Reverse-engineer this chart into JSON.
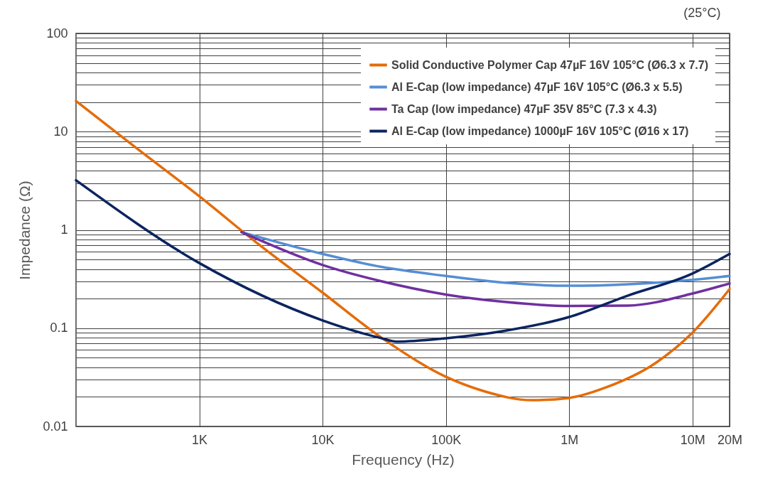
{
  "chart_data": {
    "type": "line",
    "xlabel": "Frequency (Hz)",
    "ylabel": "Impedance (Ω)",
    "annotations": [
      "(25°C)"
    ],
    "log": "xy",
    "grid": true,
    "legend": "top right",
    "xlim": [
      100,
      20000000
    ],
    "ylim": [
      0.01,
      100
    ],
    "xticks": [
      {
        "value": 1000,
        "label": "1K"
      },
      {
        "value": 10000,
        "label": "10K"
      },
      {
        "value": 100000,
        "label": "100K"
      },
      {
        "value": 1000000,
        "label": "1M"
      },
      {
        "value": 10000000,
        "label": "10M"
      },
      {
        "value": 20000000,
        "label": "20M"
      }
    ],
    "yticks": [
      0.01,
      {
        "value": 0.02,
        "label": null
      },
      {
        "value": 0.03,
        "label": null
      },
      {
        "value": 0.04,
        "label": null
      },
      {
        "value": 0.05,
        "label": null
      },
      {
        "value": 0.06,
        "label": null
      },
      {
        "value": 0.07,
        "label": null
      },
      {
        "value": 0.08,
        "label": null
      },
      {
        "value": 0.09,
        "label": null
      },
      0.1,
      {
        "value": 0.2,
        "label": null
      },
      {
        "value": 0.3,
        "label": null
      },
      {
        "value": 0.4,
        "label": null
      },
      {
        "value": 0.5,
        "label": null
      },
      {
        "value": 0.6,
        "label": null
      },
      {
        "value": 0.7,
        "label": null
      },
      {
        "value": 0.8,
        "label": null
      },
      {
        "value": 0.9,
        "label": null
      },
      1,
      {
        "value": 2,
        "label": null
      },
      {
        "value": 3,
        "label": null
      },
      {
        "value": 4,
        "label": null
      },
      {
        "value": 5,
        "label": null
      },
      {
        "value": 6,
        "label": null
      },
      {
        "value": 7,
        "label": null
      },
      {
        "value": 8,
        "label": null
      },
      {
        "value": 9,
        "label": null
      },
      10,
      {
        "value": 20,
        "label": null
      },
      {
        "value": 30,
        "label": null
      },
      {
        "value": 40,
        "label": null
      },
      {
        "value": 50,
        "label": null
      },
      {
        "value": 60,
        "label": null
      },
      {
        "value": 70,
        "label": null
      },
      {
        "value": 80,
        "label": null
      },
      {
        "value": 90,
        "label": null
      },
      100
    ],
    "series": [
      {
        "name": "Solid Conductive Polymer Cap 47µF 16V 105°C (Ø6.3 x 7.7)",
        "color": "#e46c0a",
        "x": [
          100,
          300,
          1000,
          3000,
          10000,
          30000,
          100000,
          200000,
          500000,
          1000000,
          2000000,
          5000000,
          10000000,
          20000000
        ],
        "values": [
          20.5,
          7,
          2.2,
          0.72,
          0.23,
          0.08,
          0.032,
          0.023,
          0.0185,
          0.0195,
          0.025,
          0.044,
          0.09,
          0.25
        ]
      },
      {
        "name": "Al E-Cap (low impedance) 47µF 16V 105°C (Ø6.3 x 5.5)",
        "color": "#558ed5",
        "x": [
          2200,
          10000,
          30000,
          100000,
          300000,
          1000000,
          3000000,
          10000000,
          20000000
        ],
        "values": [
          0.95,
          0.57,
          0.42,
          0.34,
          0.29,
          0.27,
          0.28,
          0.31,
          0.34
        ]
      },
      {
        "name": "Ta Cap (low impedance) 47µF 35V 85°C (7.3 x 4.3)",
        "color": "#7030a0",
        "x": [
          2200,
          10000,
          30000,
          100000,
          300000,
          1000000,
          3000000,
          10000000,
          20000000
        ],
        "values": [
          0.95,
          0.44,
          0.3,
          0.22,
          0.185,
          0.168,
          0.17,
          0.225,
          0.285
        ]
      },
      {
        "name": "Al E-Cap (low impedance) 1000µF 16V 105°C (Ø16 x 17)",
        "color": "#0b2460",
        "x": [
          100,
          1000,
          10000,
          30000,
          40000,
          100000,
          300000,
          1000000,
          3000000,
          10000000,
          20000000
        ],
        "values": [
          3.2,
          0.46,
          0.12,
          0.079,
          0.073,
          0.079,
          0.094,
          0.13,
          0.215,
          0.36,
          0.57
        ]
      }
    ]
  }
}
